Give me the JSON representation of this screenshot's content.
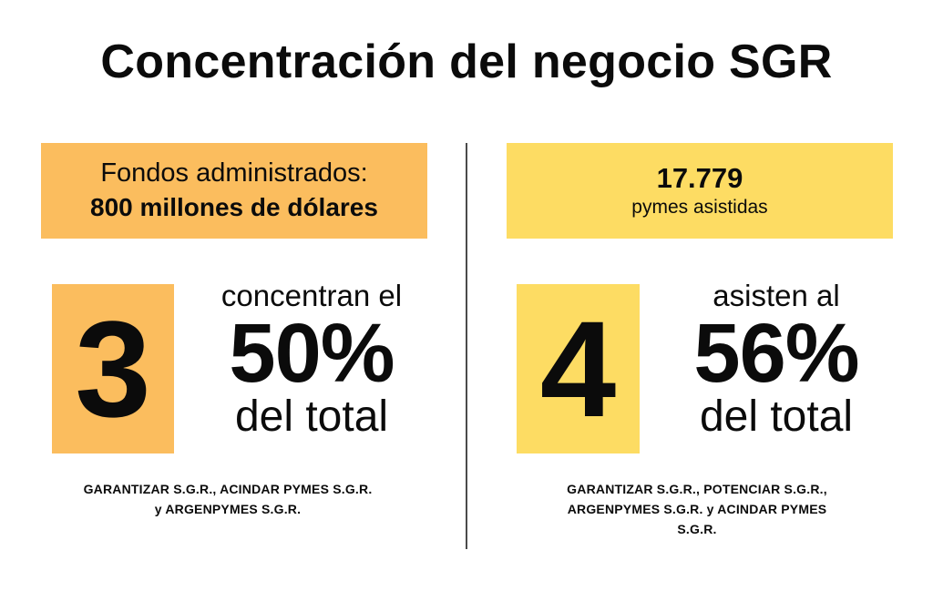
{
  "title": "Concentración del negocio SGR",
  "left": {
    "box_line1": "Fondos administrados:",
    "box_line2": "800 millones de dólares",
    "digit": "3",
    "stat_top": "concentran el",
    "stat_big": "50%",
    "stat_bottom": "del total",
    "names_line1": "GARANTIZAR S.G.R., ACINDAR PYMES S.G.R.",
    "names_line2": "y ARGENPYMES S.G.R."
  },
  "right": {
    "box_number": "17.779",
    "box_sub": "pymes asistidas",
    "digit": "4",
    "stat_top": "asisten al",
    "stat_big": "56%",
    "stat_bottom": "del total",
    "names_line1": "GARANTIZAR S.G.R., POTENCIAR S.G.R.,",
    "names_line2": "ARGENPYMES S.G.R. y ACINDAR PYMES",
    "names_line3": "S.G.R."
  },
  "colors": {
    "orange": "#fbbd5e",
    "yellow": "#fddc63",
    "text": "#0b0b0b"
  }
}
